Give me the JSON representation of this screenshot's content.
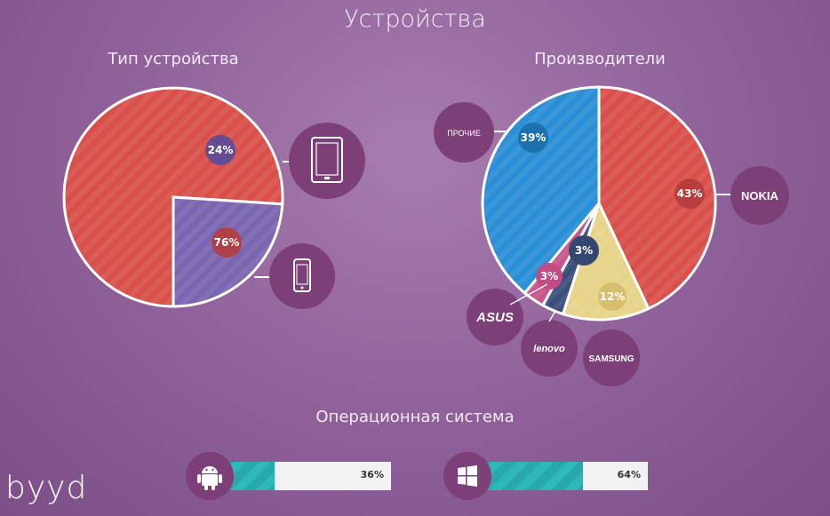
{
  "title": "Устройства",
  "logo": "byyd",
  "device_chart": {
    "title": "Тип устройства"
  },
  "manufacturer_chart": {
    "title": "Производители"
  },
  "os": {
    "title": "Операционная система"
  },
  "colors": {
    "red": "#d9504a",
    "purple": "#7b65b0",
    "blue": "#2a8fd6",
    "yellow": "#e7d389",
    "navy": "#3a4f7a",
    "pink": "#c8548a",
    "teal": "#2fb8b8",
    "badge": "#7c3f78"
  },
  "chart_data": [
    {
      "type": "pie",
      "title": "Тип устройства",
      "slices": [
        {
          "label": "76%",
          "value": 76,
          "icon": "smartphone-icon",
          "color": "#d9504a"
        },
        {
          "label": "24%",
          "value": 24,
          "icon": "tablet-icon",
          "color": "#7b65b0"
        }
      ]
    },
    {
      "type": "pie",
      "title": "Производители",
      "slices": [
        {
          "label": "43%",
          "value": 43,
          "name": "NOKIA",
          "color": "#d9504a"
        },
        {
          "label": "12%",
          "value": 12,
          "name": "SAMSUNG",
          "color": "#e7d389"
        },
        {
          "label": "3%",
          "value": 3,
          "name": "lenovo",
          "color": "#3a4f7a"
        },
        {
          "label": "3%",
          "value": 3,
          "name": "ASUS",
          "color": "#c8548a"
        },
        {
          "label": "39%",
          "value": 39,
          "name": "ПРОЧИЕ",
          "color": "#2a8fd6"
        }
      ]
    },
    {
      "type": "bar",
      "title": "Операционная система",
      "categories": [
        "Android",
        "Windows"
      ],
      "values": [
        36,
        64
      ],
      "labels": [
        "36%",
        "64%"
      ],
      "icons": [
        "android-icon",
        "windows-icon"
      ]
    }
  ]
}
